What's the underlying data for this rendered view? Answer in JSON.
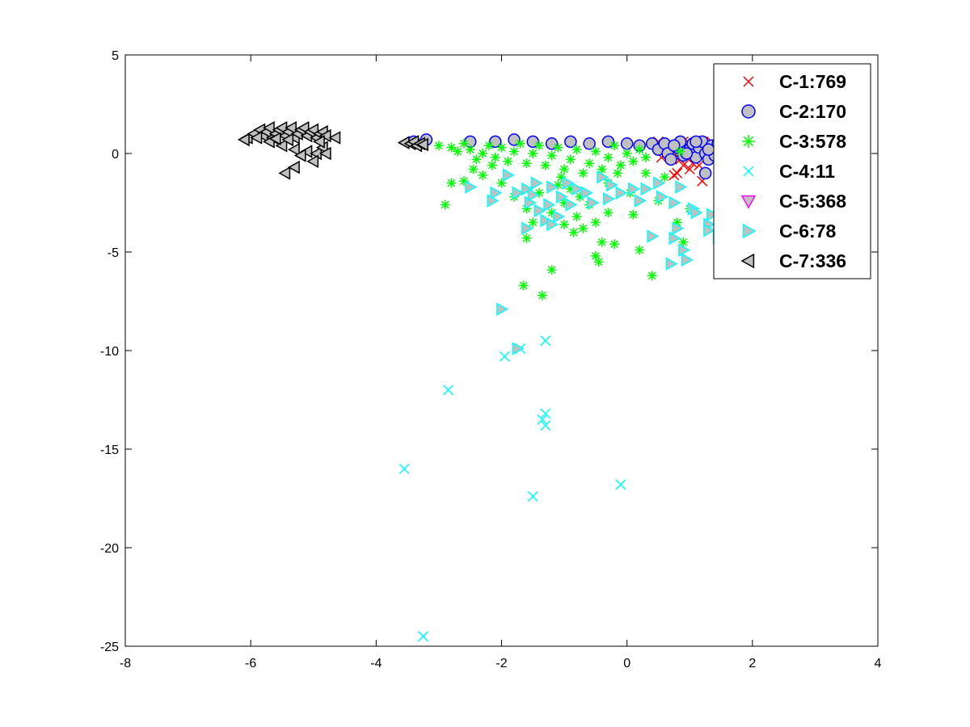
{
  "chart_data": {
    "type": "scatter",
    "title": "",
    "xlabel": "",
    "ylabel": "",
    "xlim": [
      -8,
      4
    ],
    "ylim": [
      -25,
      5
    ],
    "xticks": [
      -8,
      -6,
      -4,
      -2,
      0,
      2,
      4
    ],
    "yticks": [
      5,
      0,
      -5,
      -10,
      -15,
      -20,
      -25
    ],
    "grid": false,
    "legend_position": "top-right",
    "series": [
      {
        "name": "C-1:769",
        "marker": "x",
        "color": "#ff0000",
        "fill": "none",
        "points": [
          [
            0.5,
            0.6
          ],
          [
            0.7,
            0.5
          ],
          [
            0.8,
            0.4
          ],
          [
            0.9,
            0.6
          ],
          [
            1.0,
            0.5
          ],
          [
            1.1,
            0.3
          ],
          [
            0.6,
            0.2
          ],
          [
            0.75,
            -0.1
          ],
          [
            0.85,
            -0.3
          ],
          [
            0.9,
            -0.6
          ],
          [
            1.0,
            -0.8
          ],
          [
            0.8,
            -1.0
          ],
          [
            0.75,
            -1.1
          ],
          [
            1.05,
            -0.5
          ],
          [
            1.15,
            -0.6
          ],
          [
            1.2,
            -1.4
          ],
          [
            1.3,
            0.4
          ],
          [
            1.35,
            0.6
          ],
          [
            1.4,
            0.2
          ],
          [
            0.95,
            -0.2
          ],
          [
            1.1,
            0.0
          ],
          [
            0.65,
            0.1
          ],
          [
            0.55,
            -0.2
          ]
        ]
      },
      {
        "name": "C-2:170",
        "marker": "o",
        "color": "#0000ff",
        "fill": "#c0c0c0",
        "points": [
          [
            -3.4,
            0.6
          ],
          [
            -3.2,
            0.7
          ],
          [
            -2.5,
            0.6
          ],
          [
            -2.1,
            0.6
          ],
          [
            -1.8,
            0.7
          ],
          [
            -1.5,
            0.6
          ],
          [
            -1.2,
            0.5
          ],
          [
            -0.9,
            0.6
          ],
          [
            -0.6,
            0.5
          ],
          [
            -0.3,
            0.6
          ],
          [
            0.0,
            0.5
          ],
          [
            0.2,
            0.4
          ],
          [
            0.4,
            0.5
          ],
          [
            0.5,
            0.2
          ],
          [
            0.6,
            0.5
          ],
          [
            0.65,
            0.0
          ],
          [
            0.7,
            -0.3
          ],
          [
            0.8,
            0.3
          ],
          [
            0.85,
            0.6
          ],
          [
            0.9,
            -0.1
          ],
          [
            1.0,
            0.2
          ],
          [
            1.05,
            0.5
          ],
          [
            1.1,
            -0.2
          ],
          [
            1.15,
            0.3
          ],
          [
            1.2,
            0.6
          ],
          [
            1.25,
            0.0
          ],
          [
            1.3,
            -0.3
          ],
          [
            1.35,
            0.4
          ],
          [
            1.4,
            -0.1
          ],
          [
            1.45,
            0.5
          ],
          [
            1.25,
            -1.0
          ],
          [
            0.95,
            0.0
          ],
          [
            0.75,
            0.4
          ],
          [
            1.1,
            0.6
          ],
          [
            1.3,
            0.2
          ]
        ]
      },
      {
        "name": "C-3:578",
        "marker": "*",
        "color": "#00ff00",
        "fill": "none",
        "points": [
          [
            -3.0,
            0.4
          ],
          [
            -2.8,
            0.3
          ],
          [
            -2.7,
            0.1
          ],
          [
            -2.6,
            0.5
          ],
          [
            -2.5,
            0.2
          ],
          [
            -2.4,
            -0.3
          ],
          [
            -2.3,
            0.0
          ],
          [
            -2.2,
            0.4
          ],
          [
            -2.1,
            -0.2
          ],
          [
            -2.0,
            0.3
          ],
          [
            -1.9,
            -0.4
          ],
          [
            -1.8,
            0.1
          ],
          [
            -1.7,
            0.5
          ],
          [
            -1.6,
            -0.5
          ],
          [
            -1.5,
            0.0
          ],
          [
            -1.4,
            0.4
          ],
          [
            -1.3,
            -0.6
          ],
          [
            -1.2,
            -0.1
          ],
          [
            -1.1,
            0.3
          ],
          [
            -1.0,
            -0.8
          ],
          [
            -0.9,
            -0.3
          ],
          [
            -0.8,
            0.2
          ],
          [
            -0.7,
            -1.0
          ],
          [
            -0.6,
            -0.5
          ],
          [
            -0.5,
            0.1
          ],
          [
            -0.4,
            -0.8
          ],
          [
            -0.3,
            -0.2
          ],
          [
            -0.2,
            0.4
          ],
          [
            -0.1,
            -0.6
          ],
          [
            0.0,
            0.0
          ],
          [
            0.1,
            -0.4
          ],
          [
            0.2,
            0.2
          ],
          [
            0.3,
            -0.2
          ],
          [
            -2.8,
            -1.5
          ],
          [
            -2.9,
            -2.6
          ],
          [
            -2.6,
            -1.4
          ],
          [
            -2.3,
            -1.1
          ],
          [
            -2.0,
            -1.5
          ],
          [
            -1.8,
            -2.2
          ],
          [
            -1.6,
            -2.8
          ],
          [
            -1.5,
            -3.5
          ],
          [
            -1.6,
            -4.3
          ],
          [
            -1.4,
            -2.0
          ],
          [
            -1.2,
            -3.0
          ],
          [
            -1.0,
            -2.5
          ],
          [
            -0.8,
            -3.2
          ],
          [
            -0.7,
            -3.8
          ],
          [
            -0.6,
            -2.6
          ],
          [
            -0.5,
            -3.5
          ],
          [
            -0.4,
            -4.5
          ],
          [
            -0.3,
            -3.0
          ],
          [
            -0.5,
            -5.2
          ],
          [
            -0.45,
            -5.5
          ],
          [
            -0.2,
            -4.6
          ],
          [
            0.05,
            -2.0
          ],
          [
            0.1,
            -3.1
          ],
          [
            0.2,
            -4.9
          ],
          [
            0.4,
            -6.2
          ],
          [
            0.5,
            -2.4
          ],
          [
            0.8,
            -3.5
          ],
          [
            0.9,
            -4.5
          ],
          [
            1.0,
            -2.8
          ],
          [
            -1.2,
            -5.9
          ],
          [
            -1.65,
            -6.7
          ],
          [
            -1.35,
            -7.2
          ],
          [
            -0.9,
            -1.8
          ],
          [
            -0.75,
            -2.2
          ],
          [
            -1.1,
            -1.6
          ],
          [
            -0.3,
            -1.5
          ],
          [
            0.3,
            -1.0
          ],
          [
            0.6,
            -1.2
          ],
          [
            -2.45,
            -0.8
          ],
          [
            -2.15,
            -0.6
          ],
          [
            0.85,
            0.1
          ],
          [
            -1.05,
            -1.2
          ],
          [
            -0.15,
            -1.0
          ],
          [
            -0.85,
            -4.0
          ],
          [
            -1.0,
            -3.6
          ]
        ]
      },
      {
        "name": "C-4:11",
        "marker": "x",
        "color": "#00ffff",
        "fill": "none",
        "points": [
          [
            -3.25,
            -24.5
          ],
          [
            -3.55,
            -16.0
          ],
          [
            -2.85,
            -12.0
          ],
          [
            -1.95,
            -10.3
          ],
          [
            -1.3,
            -9.5
          ],
          [
            -1.3,
            -13.2
          ],
          [
            -1.35,
            -13.5
          ],
          [
            -1.3,
            -13.8
          ],
          [
            -1.5,
            -17.4
          ],
          [
            -0.1,
            -16.8
          ],
          [
            -1.7,
            -9.9
          ]
        ]
      },
      {
        "name": "C-5:368",
        "marker": "v",
        "color": "#ff00ff",
        "fill": "#c0c0c0",
        "points": []
      },
      {
        "name": "C-6:78",
        "marker": ">",
        "color": "#00ffff",
        "fill": "#c0c0c0",
        "points": [
          [
            -2.5,
            -1.7
          ],
          [
            -2.1,
            -2.0
          ],
          [
            -2.15,
            -2.4
          ],
          [
            -1.9,
            -1.1
          ],
          [
            -1.75,
            -2.0
          ],
          [
            -1.6,
            -1.8
          ],
          [
            -1.55,
            -2.5
          ],
          [
            -1.5,
            -2.1
          ],
          [
            -1.4,
            -2.9
          ],
          [
            -1.3,
            -3.4
          ],
          [
            -1.2,
            -1.7
          ],
          [
            -1.1,
            -3.2
          ],
          [
            -1.05,
            -2.2
          ],
          [
            -0.9,
            -2.6
          ],
          [
            -0.8,
            -1.8
          ],
          [
            -0.65,
            -2.0
          ],
          [
            -0.55,
            -2.5
          ],
          [
            -0.4,
            -1.2
          ],
          [
            -0.25,
            -1.6
          ],
          [
            -0.1,
            -2.0
          ],
          [
            0.1,
            -1.8
          ],
          [
            0.3,
            -1.8
          ],
          [
            0.5,
            -1.5
          ],
          [
            0.55,
            -2.2
          ],
          [
            0.75,
            -2.5
          ],
          [
            0.8,
            -3.8
          ],
          [
            0.75,
            -4.3
          ],
          [
            0.4,
            -4.2
          ],
          [
            0.9,
            -4.9
          ],
          [
            0.95,
            -5.4
          ],
          [
            0.7,
            -5.6
          ],
          [
            0.85,
            -1.7
          ],
          [
            1.05,
            -2.8
          ],
          [
            1.1,
            -3.0
          ],
          [
            1.3,
            -3.6
          ],
          [
            1.3,
            -3.9
          ],
          [
            1.35,
            -3.1
          ],
          [
            1.45,
            -4.3
          ],
          [
            1.5,
            -2.3
          ],
          [
            -1.6,
            -3.8
          ],
          [
            -1.2,
            -3.6
          ],
          [
            -2.0,
            -7.9
          ],
          [
            -1.75,
            -9.9
          ],
          [
            -1.25,
            -2.6
          ],
          [
            -0.95,
            -1.5
          ],
          [
            -1.45,
            -1.5
          ],
          [
            -0.3,
            -2.3
          ],
          [
            0.2,
            -2.4
          ]
        ]
      },
      {
        "name": "C-7:336",
        "marker": "<",
        "color": "#000000",
        "fill": "#c0c0c0",
        "points": [
          [
            -6.05,
            0.8
          ],
          [
            -5.95,
            1.0
          ],
          [
            -5.85,
            1.2
          ],
          [
            -5.8,
            0.9
          ],
          [
            -5.75,
            1.1
          ],
          [
            -5.7,
            1.3
          ],
          [
            -5.65,
            0.8
          ],
          [
            -5.6,
            1.0
          ],
          [
            -5.55,
            1.2
          ],
          [
            -5.5,
            1.3
          ],
          [
            -5.45,
            0.9
          ],
          [
            -5.4,
            1.1
          ],
          [
            -5.35,
            1.3
          ],
          [
            -5.3,
            0.8
          ],
          [
            -5.25,
            1.0
          ],
          [
            -5.2,
            1.2
          ],
          [
            -5.15,
            1.3
          ],
          [
            -5.1,
            0.9
          ],
          [
            -5.05,
            1.1
          ],
          [
            -5.0,
            1.2
          ],
          [
            -4.95,
            0.8
          ],
          [
            -4.9,
            1.0
          ],
          [
            -4.85,
            1.1
          ],
          [
            -4.8,
            0.9
          ],
          [
            -4.65,
            0.8
          ],
          [
            -5.5,
            0.4
          ],
          [
            -5.3,
            0.2
          ],
          [
            -5.1,
            0.1
          ],
          [
            -4.95,
            0.0
          ],
          [
            -4.85,
            0.3
          ],
          [
            -4.8,
            0.0
          ],
          [
            -5.2,
            -0.1
          ],
          [
            -5.0,
            -0.4
          ],
          [
            -5.3,
            -0.7
          ],
          [
            -5.45,
            -1.0
          ],
          [
            -3.55,
            0.55
          ],
          [
            -3.45,
            0.5
          ],
          [
            -3.4,
            0.6
          ],
          [
            -3.35,
            0.4
          ],
          [
            -3.3,
            0.5
          ],
          [
            -3.25,
            0.45
          ],
          [
            -6.1,
            0.7
          ],
          [
            -5.9,
            0.8
          ],
          [
            -5.7,
            0.6
          ],
          [
            -5.6,
            0.75
          ],
          [
            -5.4,
            0.7
          ],
          [
            -4.9,
            0.6
          ]
        ]
      }
    ]
  }
}
